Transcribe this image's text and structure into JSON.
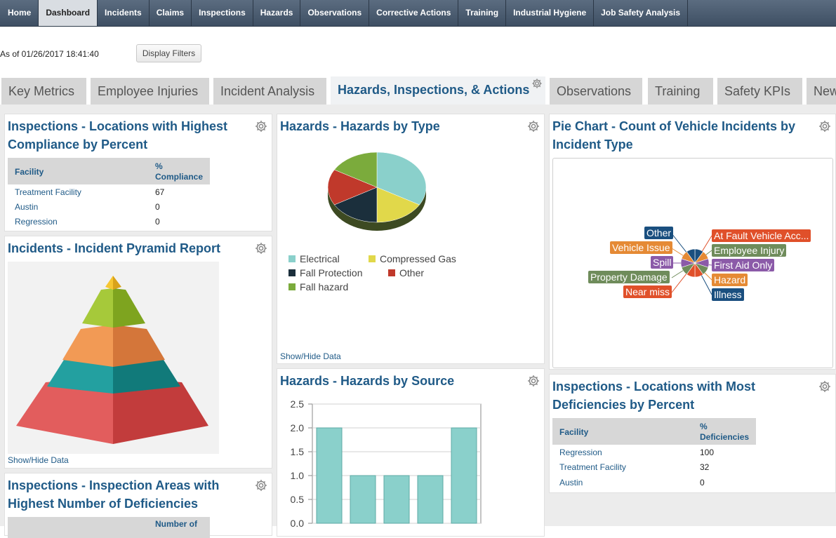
{
  "nav": {
    "items": [
      {
        "label": "Home",
        "name": "nav-home"
      },
      {
        "label": "Dashboard",
        "name": "nav-dashboard"
      },
      {
        "label": "Incidents",
        "name": "nav-incidents"
      },
      {
        "label": "Claims",
        "name": "nav-claims"
      },
      {
        "label": "Inspections",
        "name": "nav-inspections"
      },
      {
        "label": "Hazards",
        "name": "nav-hazards"
      },
      {
        "label": "Observations",
        "name": "nav-observations"
      },
      {
        "label": "Corrective Actions",
        "name": "nav-corrective-actions"
      },
      {
        "label": "Training",
        "name": "nav-training"
      },
      {
        "label": "Industrial Hygiene",
        "name": "nav-industrial-hygiene"
      },
      {
        "label": "Job Safety Analysis",
        "name": "nav-job-safety-analysis"
      }
    ],
    "active": "Dashboard"
  },
  "header": {
    "as_of": "As of 01/26/2017 18:41:40",
    "display_filters": "Display Filters"
  },
  "tabs": [
    {
      "label": "Key Metrics"
    },
    {
      "label": "Employee Injuries"
    },
    {
      "label": "Incident Analysis"
    },
    {
      "label": "Hazards, Inspections, & Actions"
    },
    {
      "label": "Observations"
    },
    {
      "label": "Training"
    },
    {
      "label": "Safety KPIs"
    },
    {
      "label": "New"
    }
  ],
  "active_tab": "Hazards, Inspections, & Actions",
  "panels": {
    "compliance": {
      "title_line1": "Inspections - Locations with Highest",
      "title_line2": "Compliance by Percent",
      "col_facility": "Facility",
      "col_value_line1": "%",
      "col_value_line2": "Compliance",
      "rows": [
        {
          "facility": "Treatment Facility",
          "value": "67"
        },
        {
          "facility": "Austin",
          "value": "0"
        },
        {
          "facility": "Regression",
          "value": "0"
        }
      ]
    },
    "pyramid": {
      "title": "Incidents - Incident Pyramid Report",
      "show_hide": "Show/Hide Data"
    },
    "areas": {
      "title_line1": "Inspections - Inspection Areas with",
      "title_line2": "Highest Number of Deficiencies",
      "col_value_line1": "Number of"
    },
    "hazards_type": {
      "title": "Hazards - Hazards by Type",
      "show_hide": "Show/Hide Data",
      "legend": [
        {
          "label": "Electrical",
          "color": "#8ad0cb"
        },
        {
          "label": "Compressed Gas",
          "color": "#e1d84a"
        },
        {
          "label": "Fall Protection",
          "color": "#1b2f3c"
        },
        {
          "label": "Other",
          "color": "#c0392b"
        },
        {
          "label": "Fall hazard",
          "color": "#7bab3c"
        }
      ]
    },
    "hazards_source": {
      "title": "Hazards - Hazards by Source"
    },
    "vehicle": {
      "title_line1": "Pie Chart - Count of Vehicle Incidents by",
      "title_line2": "Incident Type",
      "labels": [
        {
          "label": "Other",
          "color": "#1a4f7f"
        },
        {
          "label": "Vehicle Issue",
          "color": "#e58a35"
        },
        {
          "label": "Spill",
          "color": "#8b5aa8"
        },
        {
          "label": "Property Damage",
          "color": "#6f8c5b"
        },
        {
          "label": "Near miss",
          "color": "#e0502a"
        },
        {
          "label": "At Fault Vehicle Acc...",
          "color": "#e0502a"
        },
        {
          "label": "Employee Injury",
          "color": "#6f8c5b"
        },
        {
          "label": "First Aid Only",
          "color": "#8b5aa8"
        },
        {
          "label": "Hazard",
          "color": "#e58a35"
        },
        {
          "label": "Illness",
          "color": "#1a4f7f"
        }
      ]
    },
    "deficiencies": {
      "title_line1": "Inspections - Locations with Most",
      "title_line2": "Deficiencies by Percent",
      "col_facility": "Facility",
      "col_value_line1": "%",
      "col_value_line2": "Deficiencies",
      "rows": [
        {
          "facility": "Regression",
          "value": "100"
        },
        {
          "facility": "Treatment Facility",
          "value": "32"
        },
        {
          "facility": "Austin",
          "value": "0"
        }
      ]
    }
  },
  "chart_data": [
    {
      "type": "pie",
      "labels": [
        "Electrical",
        "Compressed Gas",
        "Fall Protection",
        "Other",
        "Fall hazard"
      ],
      "values": [
        2,
        1,
        1,
        1,
        1
      ],
      "colors": [
        "#8ad0cb",
        "#e1d84a",
        "#1b2f3c",
        "#c0392b",
        "#7bab3c"
      ]
    },
    {
      "type": "bar",
      "categories": [
        "",
        "",
        "",
        "",
        ""
      ],
      "values": [
        2,
        1,
        1,
        1,
        2
      ],
      "ylim": [
        0,
        2.5
      ],
      "yticks": [
        "0.0",
        "0.5",
        "1.0",
        "1.5",
        "2.0",
        "2.5"
      ],
      "grid": true,
      "color": "#8ad0cb"
    },
    {
      "type": "pie",
      "labels": [
        "Other",
        "Vehicle Issue",
        "Spill",
        "Property Damage",
        "Near miss",
        "At Fault Vehicle Acc...",
        "Employee Injury",
        "First Aid Only",
        "Hazard",
        "Illness"
      ],
      "values": [
        1,
        1,
        1,
        1,
        1,
        1,
        1,
        1,
        1,
        1
      ]
    }
  ]
}
